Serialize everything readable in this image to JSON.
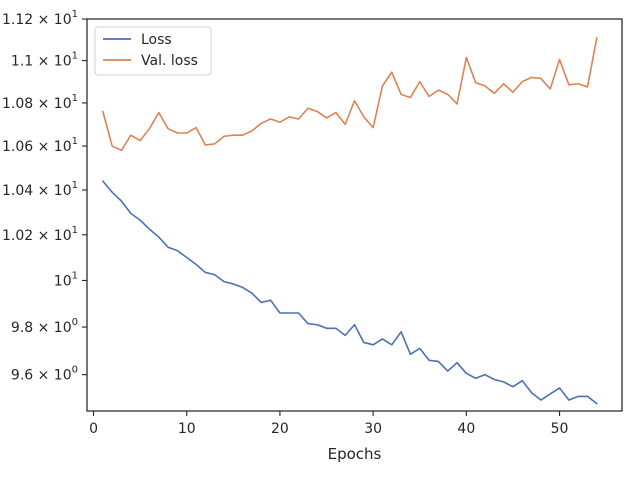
{
  "chart_data": {
    "type": "line",
    "title": "",
    "xlabel": "Epochs",
    "ylabel": "",
    "yscale": "log",
    "xlim": [
      -0.7,
      56.7
    ],
    "ylim": [
      9.45,
      11.2
    ],
    "grid": false,
    "legend_position": "top-left",
    "x_ticks": [
      0,
      10,
      20,
      30,
      40,
      50
    ],
    "x_tick_labels": [
      "0",
      "10",
      "20",
      "30",
      "40",
      "50"
    ],
    "y_ticks": [
      9.6,
      9.8,
      10.0,
      10.2,
      10.4,
      10.6,
      10.8,
      11.0,
      11.2
    ],
    "y_tick_labels": [
      {
        "mantissa": "9.6",
        "exponent": "0"
      },
      {
        "mantissa": "9.8",
        "exponent": "0"
      },
      {
        "mantissa": "10",
        "exponent": "1",
        "plain": true
      },
      {
        "mantissa": "1.02",
        "exponent": "1"
      },
      {
        "mantissa": "1.04",
        "exponent": "1"
      },
      {
        "mantissa": "1.06",
        "exponent": "1"
      },
      {
        "mantissa": "1.08",
        "exponent": "1"
      },
      {
        "mantissa": "1.1",
        "exponent": "1"
      },
      {
        "mantissa": "1.12",
        "exponent": "1"
      }
    ],
    "y_tick_prefix": "",
    "y_tick_times": "×",
    "x": [
      1,
      2,
      3,
      4,
      5,
      6,
      7,
      8,
      9,
      10,
      11,
      12,
      13,
      14,
      15,
      16,
      17,
      18,
      19,
      20,
      21,
      22,
      23,
      24,
      25,
      26,
      27,
      28,
      29,
      30,
      31,
      32,
      33,
      34,
      35,
      36,
      37,
      38,
      39,
      40,
      41,
      42,
      43,
      44,
      45,
      46,
      47,
      48,
      49,
      50,
      51,
      52,
      53,
      54
    ],
    "series": [
      {
        "name": "Loss",
        "color": "#4c72b0",
        "values": [
          10.44,
          10.39,
          10.35,
          10.295,
          10.265,
          10.225,
          10.19,
          10.145,
          10.13,
          10.1,
          10.07,
          10.035,
          10.025,
          9.995,
          9.985,
          9.97,
          9.945,
          9.905,
          9.915,
          9.86,
          9.86,
          9.86,
          9.815,
          9.81,
          9.795,
          9.795,
          9.765,
          9.81,
          9.735,
          9.725,
          9.75,
          9.725,
          9.78,
          9.685,
          9.71,
          9.66,
          9.655,
          9.615,
          9.65,
          9.605,
          9.585,
          9.6,
          9.58,
          9.57,
          9.55,
          9.575,
          9.525,
          9.495,
          9.52,
          9.545,
          9.495,
          9.51,
          9.51,
          9.48
        ]
      },
      {
        "name": "Val. loss",
        "color": "#dd8452",
        "values": [
          10.76,
          10.6,
          10.58,
          10.65,
          10.625,
          10.68,
          10.755,
          10.68,
          10.66,
          10.66,
          10.685,
          10.605,
          10.61,
          10.645,
          10.65,
          10.65,
          10.67,
          10.705,
          10.725,
          10.71,
          10.735,
          10.725,
          10.775,
          10.76,
          10.73,
          10.755,
          10.7,
          10.81,
          10.735,
          10.685,
          10.88,
          10.945,
          10.84,
          10.825,
          10.9,
          10.83,
          10.86,
          10.84,
          10.795,
          11.015,
          10.895,
          10.88,
          10.845,
          10.89,
          10.85,
          10.9,
          10.92,
          10.915,
          10.865,
          11.005,
          10.885,
          10.89,
          10.875,
          11.11
        ]
      }
    ]
  }
}
